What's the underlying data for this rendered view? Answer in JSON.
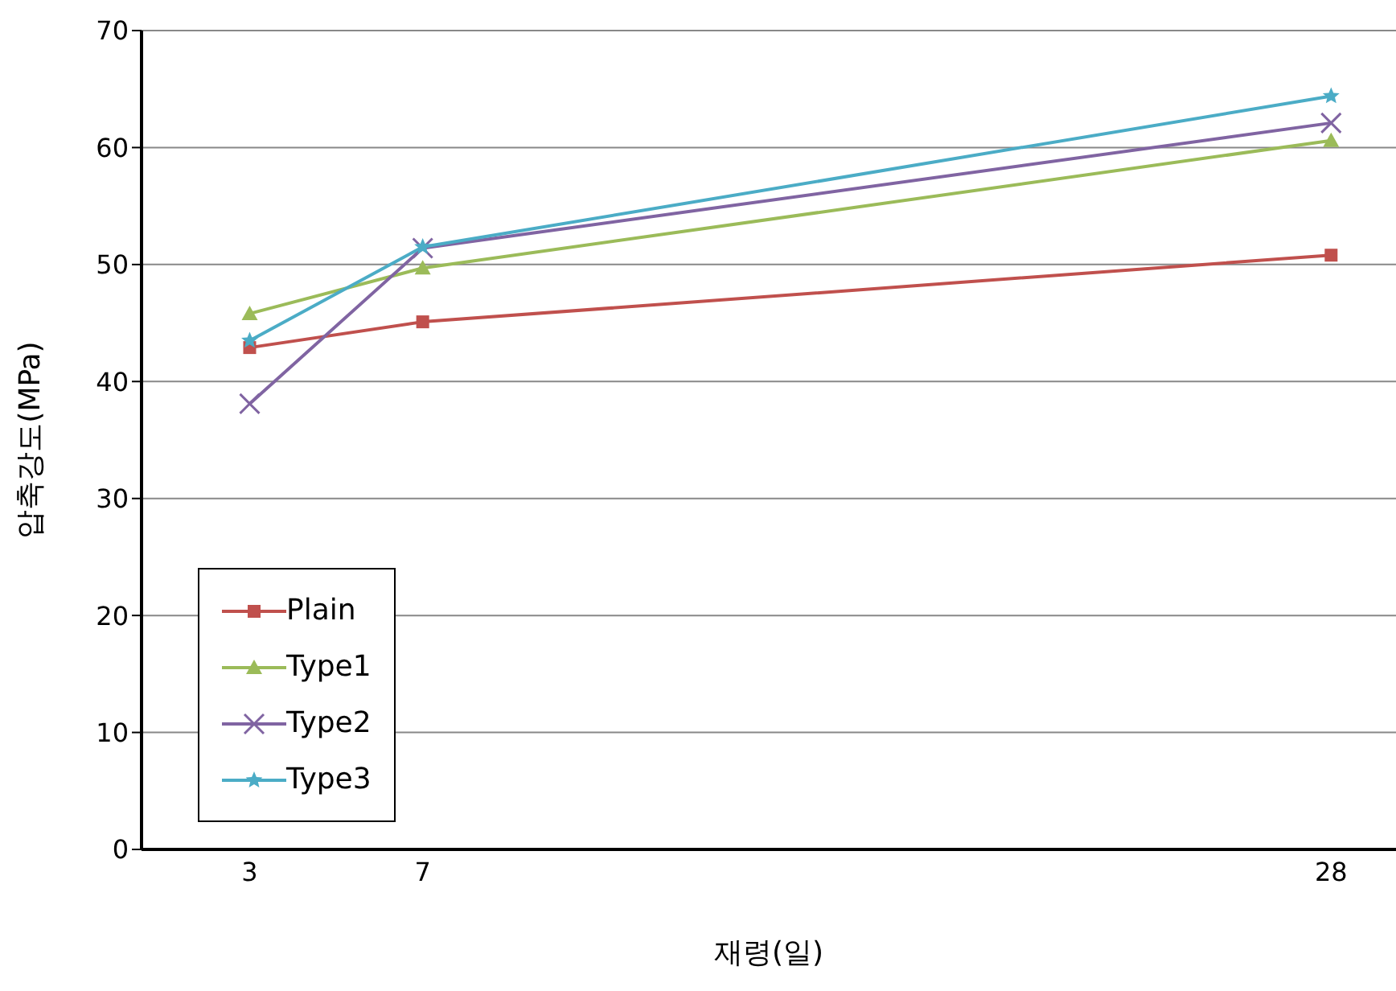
{
  "chart_data": {
    "type": "line",
    "xlabel": "재령(일)",
    "ylabel": "압축강도(MPa)",
    "x": [
      3,
      7,
      28
    ],
    "xlim": [
      0.5,
      29.5
    ],
    "xticks": [
      3,
      7,
      28
    ],
    "ylim": [
      0,
      70
    ],
    "yticks": [
      0,
      10,
      20,
      30,
      40,
      50,
      60,
      70
    ],
    "grid": "y",
    "legend": "bottom left",
    "series": [
      {
        "name": "Plain",
        "color": "#c0504d",
        "marker": "square",
        "values": [
          42.9,
          45.1,
          50.8
        ]
      },
      {
        "name": "Type1",
        "color": "#9bbb59",
        "marker": "triangle",
        "values": [
          45.8,
          49.7,
          60.6
        ]
      },
      {
        "name": "Type2",
        "color": "#8064a2",
        "marker": "cross",
        "values": [
          38.1,
          51.4,
          62.1
        ]
      },
      {
        "name": "Type3",
        "color": "#4bacc6",
        "marker": "star",
        "values": [
          43.5,
          51.5,
          64.4
        ]
      }
    ]
  }
}
